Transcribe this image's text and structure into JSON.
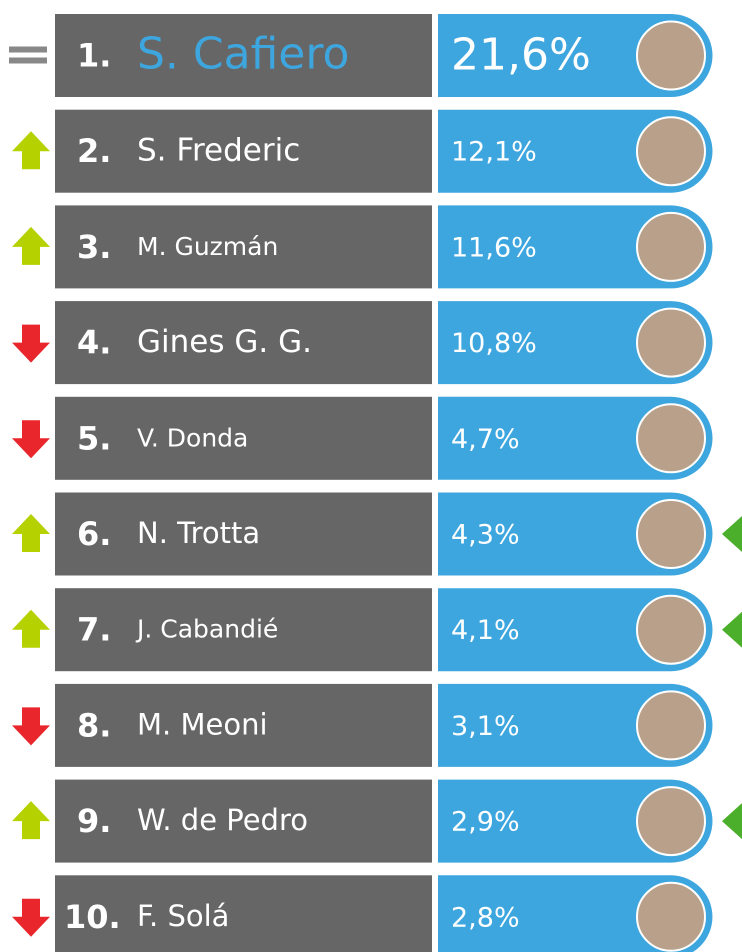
{
  "rows": [
    {
      "rank": "1.",
      "name": "S. Cafiero",
      "value": "21,6%"
    },
    {
      "rank": "2.",
      "name": "S. Frederic",
      "value": "12,1%"
    },
    {
      "rank": "3.",
      "name": "M. Guzmán",
      "value": "11,6%"
    },
    {
      "rank": "4.",
      "name": "Gines G. G.",
      "value": "10,8%"
    },
    {
      "rank": "5.",
      "name": "V. Donda",
      "value": "4,7%"
    },
    {
      "rank": "6.",
      "name": "N. Trotta",
      "value": "4,3%"
    },
    {
      "rank": "7.",
      "name": "J. Cabandié",
      "value": "4,1%"
    },
    {
      "rank": "8.",
      "name": "M. Meoni",
      "value": "3,1%"
    },
    {
      "rank": "9.",
      "name": "W. de Pedro",
      "value": "2,9%"
    },
    {
      "rank": "10.",
      "name": "F. Solá",
      "value": "2,8%"
    }
  ]
}
